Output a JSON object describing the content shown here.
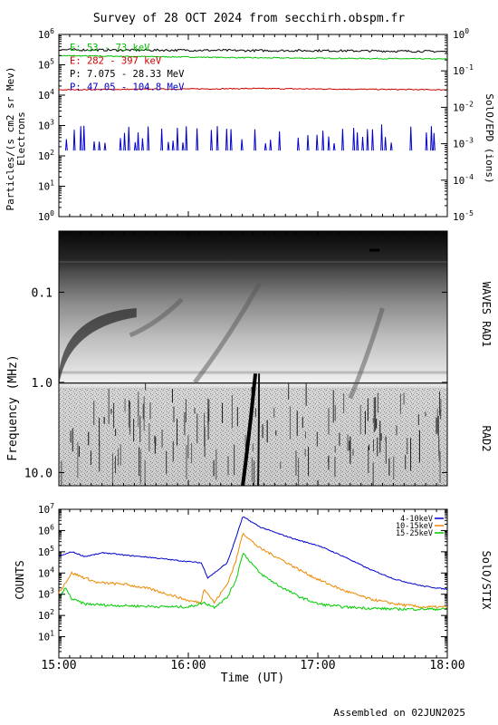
{
  "title": "Survey of 28 OCT 2024 from secchirh.obspm.fr",
  "footer": "Assembled on 02JUN2025",
  "chart_data": [
    {
      "type": "line",
      "ylabel_left": "Particles/(s cm2 sr Mev)",
      "ylabel_left_sub": "Electrons",
      "ylabel_right": "SolO/EPD (ions)",
      "yscale": "log",
      "ylim_left": [
        1,
        1000000
      ],
      "ylim_right": [
        1e-05,
        1
      ],
      "yticks_left": [
        {
          "v": 1,
          "base": "10",
          "exp": "0"
        },
        {
          "v": 10,
          "base": "10",
          "exp": "1"
        },
        {
          "v": 100,
          "base": "10",
          "exp": "2"
        },
        {
          "v": 1000,
          "base": "10",
          "exp": "3"
        },
        {
          "v": 10000,
          "base": "10",
          "exp": "4"
        },
        {
          "v": 100000,
          "base": "10",
          "exp": "5"
        },
        {
          "v": 1000000,
          "base": "10",
          "exp": "6"
        }
      ],
      "yticks_right": [
        {
          "v": 1e-05,
          "base": "10",
          "exp": "-5"
        },
        {
          "v": 0.0001,
          "base": "10",
          "exp": "-4"
        },
        {
          "v": 0.001,
          "base": "10",
          "exp": "-3"
        },
        {
          "v": 0.01,
          "base": "10",
          "exp": "-2"
        },
        {
          "v": 0.1,
          "base": "10",
          "exp": "-1"
        },
        {
          "v": 1,
          "base": "10",
          "exp": "0"
        }
      ],
      "legend": [
        {
          "label": "E: 53 - 73 keV",
          "color": "#00c000"
        },
        {
          "label": "E: 282 - 397 keV",
          "color": "#cc0000"
        },
        {
          "label": "P: 7.075 - 28.33 MeV",
          "color": "#000000"
        },
        {
          "label": "P: 47.05 - 104.8 MeV",
          "color": "#0000cc"
        }
      ],
      "series": [
        {
          "name": "E: 53 - 73 keV",
          "color": "#00c000",
          "axis": "left",
          "x": [
            15.0,
            15.5,
            16.0,
            16.5,
            17.0,
            17.5,
            18.0
          ],
          "y": [
            200000,
            190000,
            180000,
            170000,
            165000,
            160000,
            155000
          ]
        },
        {
          "name": "E: 282 - 397 keV",
          "color": "#cc0000",
          "axis": "left",
          "x": [
            15.0,
            15.5,
            16.0,
            16.5,
            17.0,
            17.5,
            18.0
          ],
          "y": [
            15000,
            15500,
            16000,
            16500,
            16000,
            15500,
            15000
          ]
        },
        {
          "name": "P: 7.075 - 28.33 MeV",
          "color": "#000000",
          "axis": "right",
          "x": [
            15.0,
            15.5,
            16.0,
            16.5,
            17.0,
            17.5,
            18.0
          ],
          "y": [
            0.38,
            0.37,
            0.37,
            0.36,
            0.36,
            0.35,
            0.34
          ]
        },
        {
          "name": "P: 47.05 - 104.8 MeV",
          "color": "#0000cc",
          "axis": "right",
          "x": [
            15.0,
            15.5,
            16.0,
            16.5,
            17.0,
            17.5,
            18.0
          ],
          "y": [
            0.001,
            0.001,
            0.001,
            0.001,
            0.001,
            0.001,
            0.001
          ]
        }
      ]
    },
    {
      "type": "heatmap",
      "ylabel": "Frequency (MHz)",
      "yscale": "log",
      "ylim": [
        14.0,
        0.021
      ],
      "yticks": [
        {
          "v": 0.1,
          "label": "0.1"
        },
        {
          "v": 1.0,
          "label": "1.0"
        },
        {
          "v": 10.0,
          "label": "10.0"
        }
      ],
      "instrument_labels": [
        "WAVES RAD1",
        "RAD2"
      ],
      "colormap": "grayscale, dark = high intensity",
      "bursts": [
        {
          "start": 15.0,
          "end": 15.6,
          "f_high": 0.15,
          "f_low": 0.9,
          "note": "slow drift emission"
        },
        {
          "start": 15.55,
          "end": 15.95,
          "f_high": 0.12,
          "f_low": 0.3,
          "note": "faint feature"
        },
        {
          "start": 16.05,
          "end": 16.55,
          "f_high": 0.08,
          "f_low": 1.0,
          "note": "drifting feature"
        },
        {
          "start": 16.42,
          "end": 16.62,
          "f_high": 0.8,
          "f_low": 14.0,
          "note": "type III burst"
        },
        {
          "start": 17.25,
          "end": 17.5,
          "f_high": 0.15,
          "f_low": 1.5,
          "note": "drifting feature"
        }
      ]
    },
    {
      "type": "line",
      "ylabel": "COUNTS",
      "ylabel_right": "SolO/STIX",
      "xlabel": "Time (UT)",
      "yscale": "log",
      "ylim": [
        1,
        10000000
      ],
      "xlim": [
        15.0,
        18.0
      ],
      "xticks": [
        {
          "v": 15.0,
          "label": "15:00"
        },
        {
          "v": 16.0,
          "label": "16:00"
        },
        {
          "v": 17.0,
          "label": "17:00"
        },
        {
          "v": 18.0,
          "label": "18:00"
        }
      ],
      "yticks": [
        {
          "v": 10,
          "base": "10",
          "exp": "1"
        },
        {
          "v": 100,
          "base": "10",
          "exp": "2"
        },
        {
          "v": 1000,
          "base": "10",
          "exp": "3"
        },
        {
          "v": 10000,
          "base": "10",
          "exp": "4"
        },
        {
          "v": 100000,
          "base": "10",
          "exp": "5"
        },
        {
          "v": 1000000,
          "base": "10",
          "exp": "6"
        },
        {
          "v": 10000000,
          "base": "10",
          "exp": "7"
        }
      ],
      "legend": [
        {
          "label": "4-10keV",
          "color": "#0000cc"
        },
        {
          "label": "10-15keV",
          "color": "#ee8800"
        },
        {
          "label": "15-25keV",
          "color": "#00cc00"
        }
      ],
      "series": [
        {
          "name": "4-10keV",
          "color": "#0000cc",
          "x": [
            15.0,
            15.1,
            15.2,
            15.35,
            15.5,
            15.7,
            15.9,
            16.1,
            16.15,
            16.2,
            16.3,
            16.37,
            16.42,
            16.47,
            16.55,
            16.7,
            16.85,
            17.0,
            17.2,
            17.4,
            17.6,
            17.8,
            18.0
          ],
          "y": [
            60000,
            100000,
            60000,
            90000,
            70000,
            55000,
            40000,
            30000,
            6000,
            10000,
            30000,
            500000,
            4500000,
            3000000,
            1500000,
            700000,
            350000,
            200000,
            60000,
            15000,
            5000,
            2500,
            1700
          ]
        },
        {
          "name": "10-15keV",
          "color": "#ee8800",
          "x": [
            15.0,
            15.1,
            15.3,
            15.5,
            15.7,
            15.9,
            16.0,
            16.1,
            16.12,
            16.2,
            16.3,
            16.37,
            16.42,
            16.47,
            16.55,
            16.7,
            16.85,
            17.0,
            17.2,
            17.4,
            17.6,
            17.8,
            18.0
          ],
          "y": [
            1200,
            10000,
            3500,
            3000,
            1800,
            800,
            500,
            400,
            2000,
            400,
            3000,
            40000,
            800000,
            400000,
            150000,
            50000,
            15000,
            5000,
            1500,
            600,
            350,
            250,
            250
          ]
        },
        {
          "name": "15-25keV",
          "color": "#00cc00",
          "x": [
            15.0,
            15.05,
            15.1,
            15.2,
            15.4,
            15.6,
            15.8,
            16.0,
            16.12,
            16.2,
            16.3,
            16.37,
            16.42,
            16.47,
            16.55,
            16.7,
            16.85,
            17.0,
            17.2,
            17.4,
            17.6,
            17.8,
            18.0
          ],
          "y": [
            600,
            2000,
            600,
            350,
            300,
            280,
            260,
            250,
            400,
            250,
            700,
            5000,
            90000,
            40000,
            10000,
            2500,
            800,
            350,
            250,
            220,
            200,
            200,
            200
          ]
        }
      ]
    }
  ]
}
